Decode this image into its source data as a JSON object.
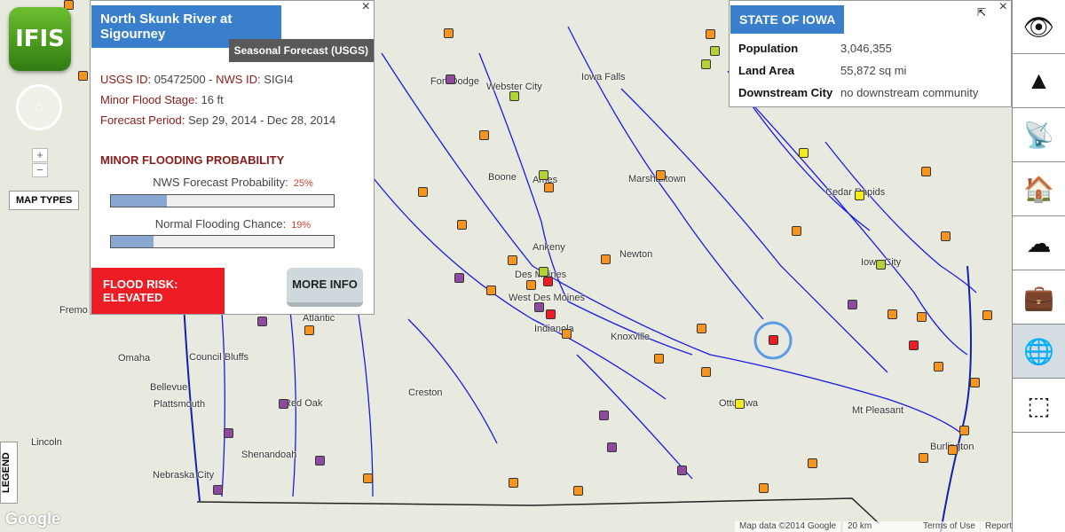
{
  "app": {
    "logo": "IFIS",
    "map_types": "MAP TYPES",
    "legend": "LEGEND",
    "zoom_in": "+",
    "zoom_out": "−"
  },
  "popup": {
    "title": "North Skunk River at Sigourney",
    "forecast_type": "Seasonal Forecast (USGS)",
    "usgs_label": "USGS ID:",
    "usgs_id": "05472500",
    "sep": " - ",
    "nws_label": "NWS ID:",
    "nws_id": "SIGI4",
    "stage_label": "Minor Flood Stage:",
    "stage": "16 ft",
    "period_label": "Forecast Period:",
    "period": "Sep 29, 2014 - Dec 28, 2014",
    "section": "MINOR FLOODING PROBABILITY",
    "nws_prob_label": "NWS Forecast Probability:",
    "nws_prob": "25%",
    "nws_prob_value": 25,
    "normal_label": "Normal Flooding Chance:",
    "normal": "19%",
    "normal_value": 19,
    "risk": "FLOOD RISK: ELEVATED",
    "more_info": "MORE INFO",
    "close": "×"
  },
  "state": {
    "title": "STATE OF IOWA",
    "close": "×",
    "rows": [
      {
        "label": "Population",
        "value": "3,046,355"
      },
      {
        "label": "Land Area",
        "value": "55,872 sq mi"
      },
      {
        "label": "Downstream City",
        "value": "no downstream community"
      }
    ]
  },
  "toolbar": [
    {
      "icon": "eye-icon",
      "glyph": "👁"
    },
    {
      "icon": "traffic-cone-icon",
      "glyph": "▲"
    },
    {
      "icon": "satellite-dish-icon",
      "glyph": "📡"
    },
    {
      "icon": "flood-house-icon",
      "glyph": "🏠"
    },
    {
      "icon": "rain-cloud-icon",
      "glyph": "☁"
    },
    {
      "icon": "briefcase-icon",
      "glyph": "💼"
    },
    {
      "icon": "globe-icon",
      "glyph": "🌐",
      "active": true
    },
    {
      "icon": "browser-cursor-icon",
      "glyph": "⬚"
    }
  ],
  "cities": [
    [
      "Fremo",
      67,
      344
    ],
    [
      "Omaha",
      133,
      398
    ],
    [
      "Council Bluffs",
      213,
      397
    ],
    [
      "Bellevue",
      169,
      431
    ],
    [
      "Plattsmouth",
      173,
      450
    ],
    [
      "Lincoln",
      35,
      493
    ],
    [
      "Nebraska City",
      172,
      530
    ],
    [
      "Shenandoah",
      272,
      507
    ],
    [
      "Red Oak",
      320,
      449
    ],
    [
      "Creston",
      460,
      437
    ],
    [
      "Atlantic",
      341,
      353
    ],
    [
      "Indianola",
      602,
      365
    ],
    [
      "Knoxville",
      688,
      374
    ],
    [
      "West Des Moines",
      573,
      330
    ],
    [
      "Des Moines",
      580,
      304
    ],
    [
      "Ankeny",
      600,
      273
    ],
    [
      "Newton",
      698,
      281
    ],
    [
      "Marshalltown",
      708,
      196
    ],
    [
      "Ames",
      600,
      197
    ],
    [
      "Boone",
      550,
      194
    ],
    [
      "Fort Dodge",
      485,
      86
    ],
    [
      "Webster City",
      548,
      92
    ],
    [
      "Iowa Falls",
      655,
      81
    ],
    [
      "Cedar Rapids",
      930,
      211
    ],
    [
      "Iowa City",
      970,
      290
    ],
    [
      "Ottumwa",
      810,
      449
    ],
    [
      "Mt Pleasant",
      960,
      457
    ],
    [
      "Burlington",
      1048,
      498
    ]
  ],
  "markers": {
    "colors": {
      "orange": "#f7941d",
      "purple": "#8e4a9e",
      "red": "#ee1c25",
      "yellow": "#f2ec1b",
      "green": "#b3d334"
    },
    "list": [
      [
        "orange",
        77,
        5
      ],
      [
        "orange",
        93,
        85
      ],
      [
        "orange",
        505,
        37
      ],
      [
        "orange",
        800,
        38
      ],
      [
        "green",
        805,
        57
      ],
      [
        "green",
        795,
        72
      ],
      [
        "purple",
        507,
        89
      ],
      [
        "green",
        579,
        108
      ],
      [
        "orange",
        545,
        152
      ],
      [
        "orange",
        744,
        197
      ],
      [
        "yellow",
        905,
        172
      ],
      [
        "orange",
        1043,
        193
      ],
      [
        "yellow",
        968,
        220
      ],
      [
        "orange",
        476,
        216
      ],
      [
        "green",
        612,
        197
      ],
      [
        "orange",
        618,
        211
      ],
      [
        "orange",
        520,
        253
      ],
      [
        "orange",
        897,
        260
      ],
      [
        "orange",
        1065,
        266
      ],
      [
        "orange",
        682,
        292
      ],
      [
        "green",
        992,
        298
      ],
      [
        "orange",
        577,
        293
      ],
      [
        "green",
        612,
        306
      ],
      [
        "red",
        617,
        317
      ],
      [
        "orange",
        598,
        321
      ],
      [
        "purple",
        517,
        313
      ],
      [
        "orange",
        553,
        327
      ],
      [
        "purple",
        607,
        346
      ],
      [
        "red",
        620,
        354
      ],
      [
        "purple",
        960,
        343
      ],
      [
        "orange",
        1005,
        354
      ],
      [
        "orange",
        1038,
        357
      ],
      [
        "orange",
        1112,
        355
      ],
      [
        "purple",
        295,
        362
      ],
      [
        "orange",
        348,
        372
      ],
      [
        "orange",
        638,
        376
      ],
      [
        "orange",
        790,
        370
      ],
      [
        "red",
        871,
        383
      ],
      [
        "red",
        1029,
        389
      ],
      [
        "orange",
        1057,
        413
      ],
      [
        "orange",
        1098,
        431
      ],
      [
        "orange",
        742,
        404
      ],
      [
        "orange",
        795,
        419
      ],
      [
        "yellow",
        833,
        455
      ],
      [
        "purple",
        319,
        455
      ],
      [
        "purple",
        680,
        468
      ],
      [
        "orange",
        1086,
        485
      ],
      [
        "purple",
        257,
        488
      ],
      [
        "purple",
        689,
        504
      ],
      [
        "orange",
        1040,
        516
      ],
      [
        "orange",
        1073,
        507
      ],
      [
        "orange",
        915,
        522
      ],
      [
        "purple",
        360,
        519
      ],
      [
        "purple",
        768,
        530
      ],
      [
        "purple",
        245,
        552
      ],
      [
        "orange",
        414,
        539
      ],
      [
        "orange",
        578,
        544
      ],
      [
        "orange",
        651,
        553
      ],
      [
        "orange",
        860,
        550
      ]
    ]
  },
  "footer": {
    "map_data": "Map data ©2014 Google",
    "scale": "20 km",
    "terms": "Terms of Use",
    "report": "Report",
    "google": "Google"
  }
}
